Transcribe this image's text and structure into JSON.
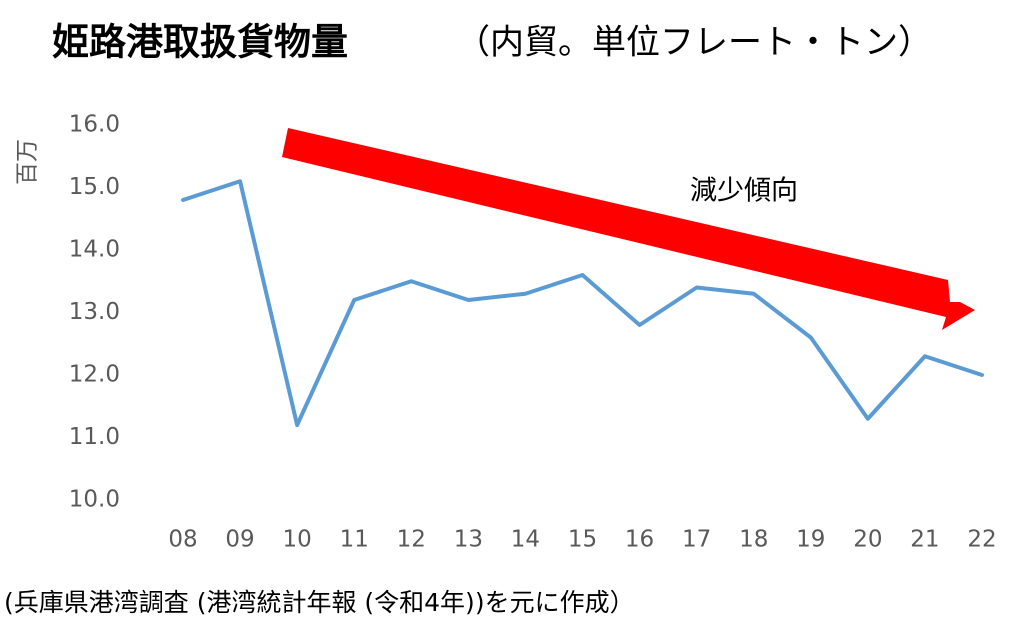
{
  "chart_data": {
    "type": "line",
    "title": "姫路港取扱貨物量",
    "subtitle": "（内貿。単位フレート・トン）",
    "y_label": "百万",
    "annotation": "減少傾向",
    "source": "(兵庫県港湾調査 (港湾統計年報 (令和4年))を元に作成）",
    "categories": [
      "08",
      "09",
      "10",
      "11",
      "12",
      "13",
      "14",
      "15",
      "16",
      "17",
      "18",
      "19",
      "20",
      "21",
      "22"
    ],
    "values": [
      14.8,
      15.1,
      11.2,
      13.2,
      13.5,
      13.2,
      13.3,
      13.6,
      12.8,
      13.4,
      13.3,
      12.6,
      11.3,
      12.3,
      12.0
    ],
    "color": "#5b9bd5",
    "ylim": [
      10,
      16
    ],
    "yticks": [
      {
        "value": 10,
        "label": "10.0"
      },
      {
        "value": 11,
        "label": "11.0"
      },
      {
        "value": 12,
        "label": "12.0"
      },
      {
        "value": 13,
        "label": "13.0"
      },
      {
        "value": 14,
        "label": "14.0"
      },
      {
        "value": 15,
        "label": "15.0"
      },
      {
        "value": 16,
        "label": "16.0"
      }
    ],
    "grid": false
  }
}
